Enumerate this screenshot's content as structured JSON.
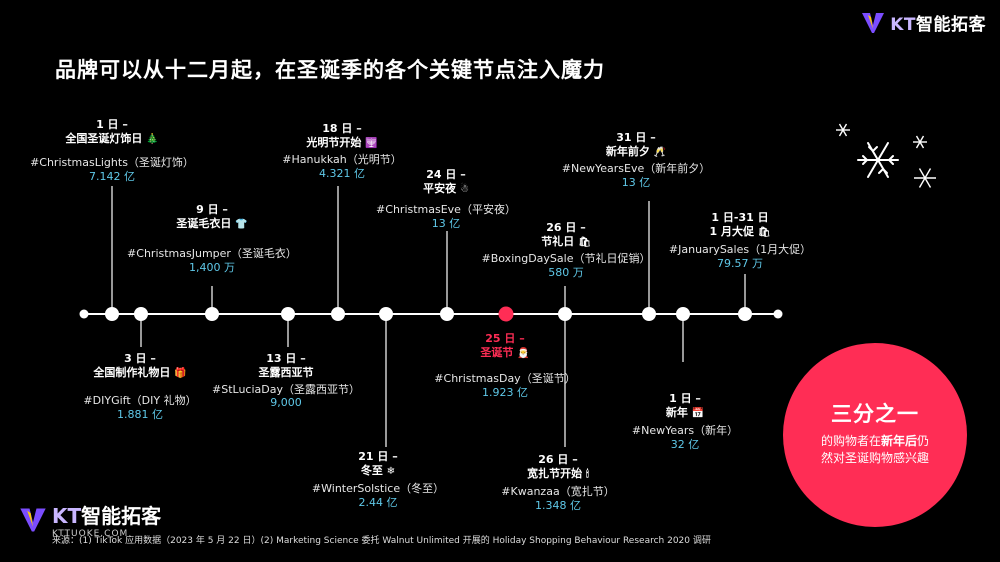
{
  "brand": {
    "prefix": "KT",
    "name": "智能拓客",
    "url": "KTTUOKE.COM"
  },
  "title": "品牌可以从十二月起，在圣诞季的各个关键节点注入魔力",
  "events": [
    {
      "id": "e1",
      "date": "1 日 –",
      "name": "全国圣诞灯饰日",
      "emoji": "🎄",
      "tag": "#ChristmasLights（圣诞灯饰）",
      "value": "7.142 亿"
    },
    {
      "id": "e3",
      "date": "3 日 –",
      "name": "全国制作礼物日",
      "emoji": "🎁",
      "tag": "#DIYGift（DIY 礼物）",
      "value": "1.881 亿"
    },
    {
      "id": "e9",
      "date": "9 日 –",
      "name": "圣诞毛衣日",
      "emoji": "👕",
      "tag": "#ChristmasJumper（圣诞毛衣）",
      "value": "1,400 万"
    },
    {
      "id": "e13",
      "date": "13 日 –",
      "name": "圣露西亚节",
      "emoji": "",
      "tag": "#StLuciaDay（圣露西亚节）",
      "value": "9,000"
    },
    {
      "id": "e18",
      "date": "18 日 –",
      "name": "光明节开始",
      "emoji": "🕎",
      "tag": "#Hanukkah（光明节）",
      "value": "4.321 亿"
    },
    {
      "id": "e21",
      "date": "21 日 –",
      "name": "冬至",
      "emoji": "❄",
      "tag": "#WinterSolstice（冬至）",
      "value": "2.44 亿"
    },
    {
      "id": "e24",
      "date": "24 日 –",
      "name": "平安夜",
      "emoji": "☃",
      "tag": "#ChristmasEve（平安夜）",
      "value": "13 亿"
    },
    {
      "id": "e25",
      "date": "25 日 –",
      "name": "圣诞节",
      "emoji": "🎅",
      "tag": "#ChristmasDay（圣诞节）",
      "value": "1.923 亿"
    },
    {
      "id": "e26a",
      "date": "26 日 –",
      "name": "节礼日",
      "emoji": "🛍",
      "tag": "#BoxingDaySale（节礼日促销）",
      "value": "580 万"
    },
    {
      "id": "e26b",
      "date": "26 日 –",
      "name": "宽扎节开始",
      "emoji": "🕯",
      "tag": "#Kwanzaa（宽扎节）",
      "value": "1.348 亿"
    },
    {
      "id": "e31",
      "date": "31 日 –",
      "name": "新年前夕",
      "emoji": "🥂",
      "tag": "#NewYearsEve（新年前夕）",
      "value": "13 亿"
    },
    {
      "id": "n1",
      "date": "1 日 –",
      "name": "新年",
      "emoji": "📅",
      "tag": "#NewYears（新年）",
      "value": "32 亿"
    },
    {
      "id": "n131",
      "date": "1 日-31 日",
      "name": "1 月大促",
      "emoji": "🛍",
      "tag": "#JanuarySales（1月大促）",
      "value": "79.57 万"
    }
  ],
  "highlight": {
    "big": "三分之一",
    "line1_pre": "的购物者在",
    "line1_bold": "新年后",
    "line1_post": "仍",
    "line2": "然对圣诞购物感兴趣"
  },
  "source": "来源：(1) TikTok 应用数据（2023 年 5 月 22 日）(2) Marketing Science 委托 Walnut Unlimited 开展的 Holiday Shopping Behaviour Research 2020 调研",
  "colors": {
    "accent": "#ff2d55",
    "value": "#5fc8e8",
    "background": "#000000"
  }
}
